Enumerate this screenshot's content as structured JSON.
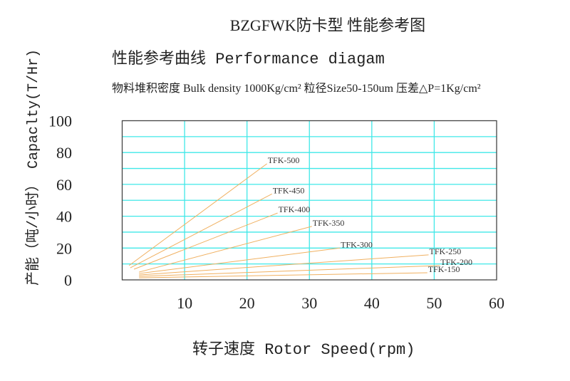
{
  "chart_data": {
    "type": "line",
    "title": "BZGFWK防卡型 性能参考图",
    "subtitle": "性能参考曲线 Performance diagam",
    "annotation": "物料堆积密度 Bulk density 1000Kg/cm² 粒径Size50-150um 压差△P=1Kg/cm²",
    "xlabel": "转子速度 Rotor Speed(rpm)",
    "ylabel": "产能（吨/小时） Capaclty(T/Hr)",
    "xlim": [
      0,
      60
    ],
    "ylim": [
      0,
      100
    ],
    "xticks": [
      "10",
      "20",
      "30",
      "40",
      "50",
      "60"
    ],
    "yticks": [
      "0",
      "20",
      "40",
      "60",
      "80",
      "100"
    ],
    "grid": true,
    "grid_step": {
      "x": 10,
      "y": 10
    },
    "colors": {
      "grid": "#40E8E8",
      "line": "#F0B060",
      "frame": "#444444"
    },
    "series": [
      {
        "name": "TFK-500",
        "x": [
          1.1,
          23.2
        ],
        "y": [
          9,
          73
        ]
      },
      {
        "name": "TFK-450",
        "x": [
          1.3,
          24
        ],
        "y": [
          7.6,
          54
        ]
      },
      {
        "name": "TFK-400",
        "x": [
          1.9,
          24.9
        ],
        "y": [
          6.7,
          42
        ]
      },
      {
        "name": "TFK-350",
        "x": [
          2.7,
          30.4
        ],
        "y": [
          4.9,
          33.6
        ]
      },
      {
        "name": "TFK-300",
        "x": [
          2.7,
          34.9
        ],
        "y": [
          4,
          20
        ]
      },
      {
        "name": "TFK-250",
        "x": [
          2.7,
          49.1
        ],
        "y": [
          3.1,
          15.7
        ]
      },
      {
        "name": "TFK-200",
        "x": [
          2.7,
          50.9
        ],
        "y": [
          2.2,
          9
        ]
      },
      {
        "name": "TFK-150",
        "x": [
          2.7,
          48.9
        ],
        "y": [
          1.3,
          4.5
        ]
      }
    ]
  }
}
